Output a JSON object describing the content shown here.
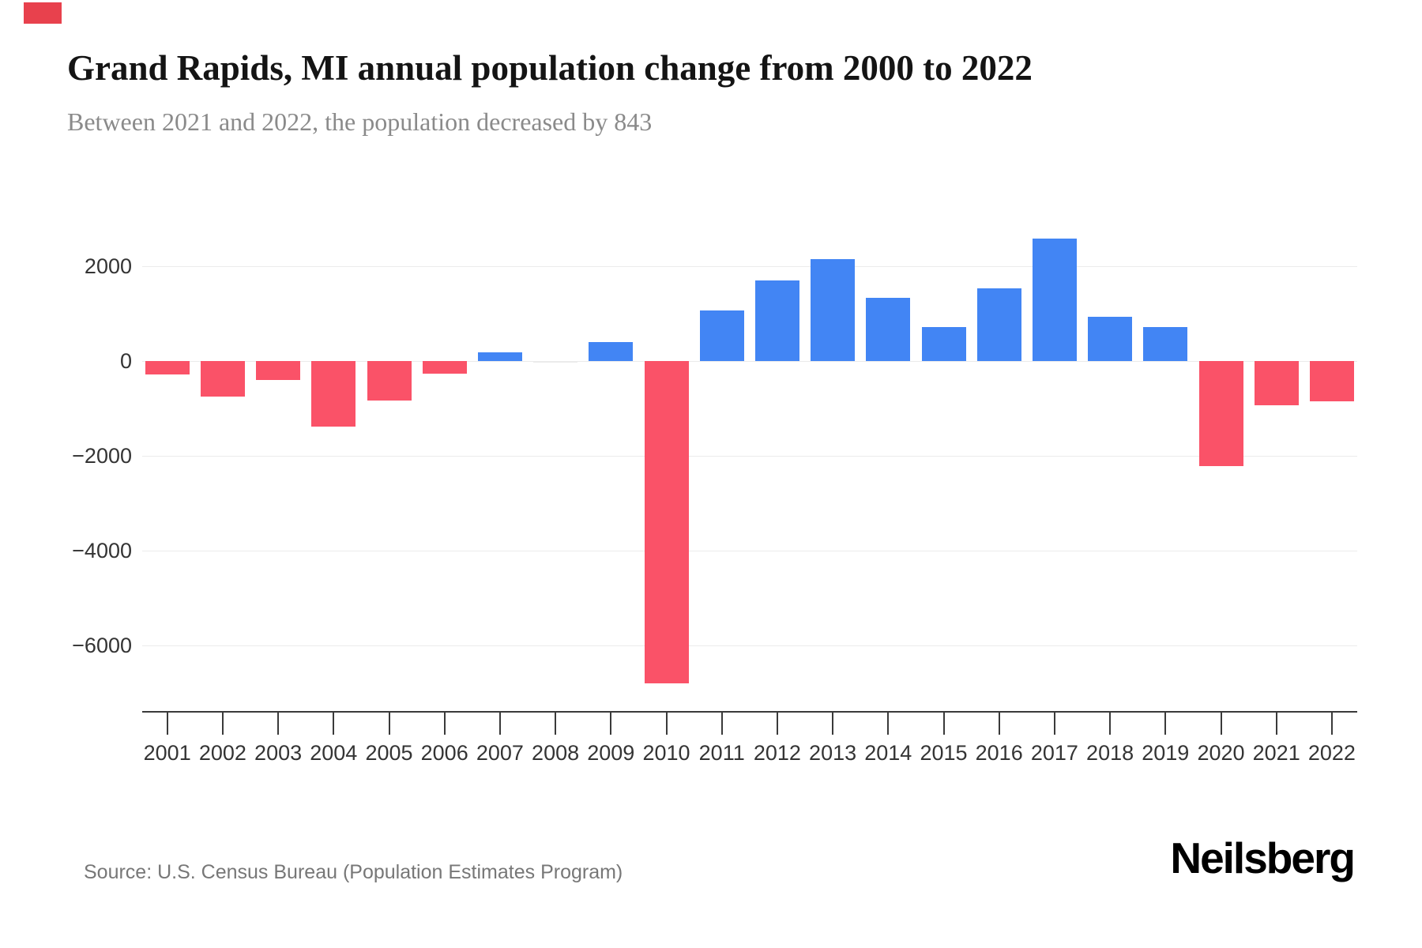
{
  "page": {
    "title": "Grand Rapids, MI annual population change from 2000 to 2022",
    "subtitle": "Between 2021 and 2022, the population decreased by 843",
    "source": "Source: U.S. Census Bureau (Population Estimates Program)",
    "brand": "Neilsberg"
  },
  "colors": {
    "positive_bar": "#4285f4",
    "negative_bar": "#fa5268",
    "near_zero_bar": "#ebebeb",
    "gridline": "#ebebeb",
    "axis": "#3a3a3a",
    "title": "#141414",
    "subtitle": "#8a8a8a",
    "tick_label": "#343434",
    "source_text": "#777777",
    "corner_marker": "#e8414d",
    "background": "#ffffff"
  },
  "chart_data": {
    "type": "bar",
    "title": "Grand Rapids, MI annual population change from 2000 to 2022",
    "subtitle": "Between 2021 and 2022, the population decreased by 843",
    "series_name": "annual population change",
    "categories": [
      "2001",
      "2002",
      "2003",
      "2004",
      "2005",
      "2006",
      "2007",
      "2008",
      "2009",
      "2010",
      "2011",
      "2012",
      "2013",
      "2014",
      "2015",
      "2016",
      "2017",
      "2018",
      "2019",
      "2020",
      "2021",
      "2022"
    ],
    "values": [
      -280,
      -750,
      -400,
      -1390,
      -830,
      -270,
      180,
      -35,
      400,
      -6800,
      1070,
      1700,
      2150,
      1330,
      710,
      1530,
      2590,
      930,
      720,
      -2210,
      -940,
      -843
    ],
    "color_rule": "blue for population increase, pink for population decrease",
    "xlabel": "",
    "ylabel": "",
    "y_ticks": [
      2000,
      0,
      -2000,
      -4000,
      -6000
    ],
    "y_tick_labels": [
      "2000",
      "0",
      "−2000",
      "−4000",
      "−6000"
    ],
    "ylim": [
      -7300,
      2800
    ],
    "grid": "horizontal gridlines only",
    "legend": "none"
  }
}
